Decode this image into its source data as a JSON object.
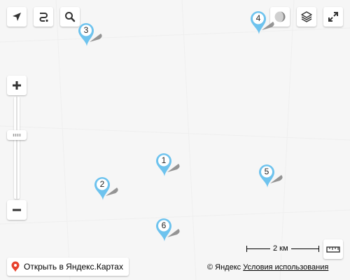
{
  "controls": {
    "geolocation_icon": "arrow-navigation-icon",
    "route_icon": "route-icon",
    "search_icon": "search-icon",
    "traffic_icon": "traffic-icon",
    "layers_icon": "layers-icon",
    "fullscreen_icon": "fullscreen-icon",
    "ruler_icon": "ruler-icon",
    "zoom_in_icon": "plus-icon",
    "zoom_out_icon": "minus-icon"
  },
  "markers": [
    {
      "label": "3"
    },
    {
      "label": "4"
    },
    {
      "label": "1"
    },
    {
      "label": "2"
    },
    {
      "label": "5"
    },
    {
      "label": "6"
    }
  ],
  "marker_color": "#6ec3ee",
  "open_in_maps": {
    "label": "Открыть в Яндекс.Картах",
    "pin_color": "#e8412c"
  },
  "scale": {
    "label": "2 км"
  },
  "copyright": {
    "owner": "© Яндекс",
    "terms_link": "Условия использования"
  }
}
